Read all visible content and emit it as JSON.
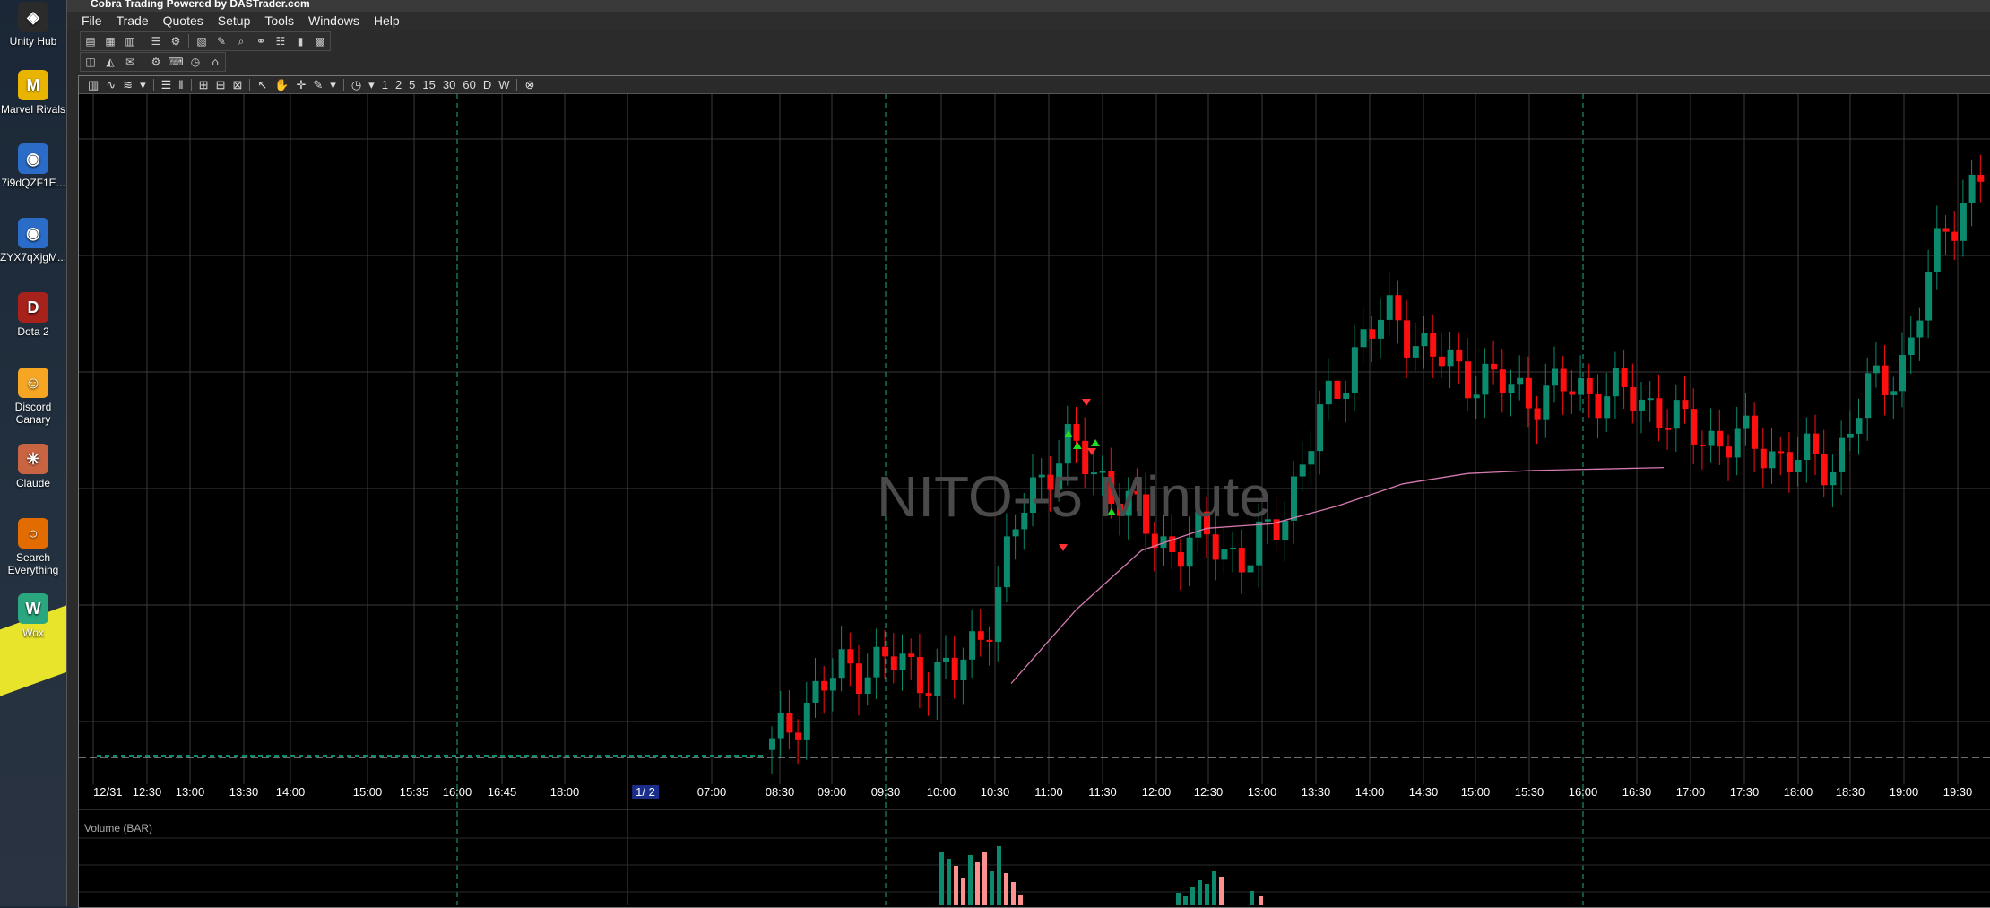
{
  "desktop": {
    "icons": [
      {
        "label": "Unity Hub",
        "icon": "unity-hub-icon",
        "color": "#2b2b2b",
        "glyph": "◈"
      },
      {
        "label": "Marvel Rivals",
        "icon": "marvel-rivals-icon",
        "color": "#e8b400",
        "glyph": "M"
      },
      {
        "label": "7i9dQZF1E...",
        "icon": "chrome-shortcut-icon",
        "color": "#2a6cc7",
        "glyph": "◉"
      },
      {
        "label": "ZYX7qXjgM...",
        "icon": "chrome-shortcut-icon",
        "color": "#2a6cc7",
        "glyph": "◉"
      },
      {
        "label": "Dota 2",
        "icon": "dota2-icon",
        "color": "#a8221c",
        "glyph": "D"
      },
      {
        "label": "Discord Canary",
        "icon": "discord-canary-icon",
        "color": "#f6a623",
        "glyph": "☺"
      },
      {
        "label": "Claude",
        "icon": "claude-icon",
        "color": "#c96442",
        "glyph": "✳"
      },
      {
        "label": "Search Everything",
        "icon": "search-everything-icon",
        "color": "#e36c00",
        "glyph": "○"
      },
      {
        "label": "Wox",
        "icon": "wox-icon",
        "color": "#2aa77f",
        "glyph": "W"
      }
    ]
  },
  "window": {
    "title": "Cobra Trading Powered by DASTrader.com"
  },
  "menu": [
    "File",
    "Trade",
    "Quotes",
    "Setup",
    "Tools",
    "Windows",
    "Help"
  ],
  "chart_toolbar": {
    "intervals": [
      "1",
      "2",
      "5",
      "15",
      "30",
      "60",
      "D",
      "W"
    ]
  },
  "chart": {
    "watermark": "NITO--5 Minute",
    "volume_label": "Volume (BAR)",
    "colors": {
      "up": "#0b8a6e",
      "down": "#ff1010",
      "vwap": "#d57ab0",
      "grid": "#3a3a3a",
      "session_line": "#1fa88a",
      "day_line": "#2b3bd0"
    }
  },
  "chart_data": {
    "type": "candlestick",
    "ticker": "NITO",
    "timeframe": "5 Minute",
    "x_tick_labels": [
      "12/31",
      "12:30",
      "13:00",
      "13:30",
      "14:00",
      "15:00",
      "15:35",
      "16:00",
      "16:45",
      "18:00",
      "1/ 2",
      "07:00",
      "08:30",
      "09:00",
      "09:30",
      "10:00",
      "10:30",
      "11:00",
      "11:30",
      "12:00",
      "12:30",
      "13:00",
      "13:30",
      "14:00",
      "14:30",
      "15:00",
      "15:30",
      "16:00",
      "16:30",
      "17:00",
      "17:30",
      "18:00",
      "18:30",
      "19:00",
      "19:30"
    ],
    "price_series": [
      0.6,
      0.6,
      0.6,
      0.6,
      0.6,
      0.62,
      0.62,
      0.6,
      0.6,
      0.6,
      0.65,
      1.0,
      1.2,
      1.25,
      1.18,
      1.15,
      1.6,
      2.4,
      2.7,
      2.5,
      2.2,
      2.0,
      2.1,
      1.9,
      2.3,
      2.9,
      3.4,
      3.6,
      3.3,
      3.2,
      3.1,
      3.05,
      3.1,
      3.05,
      3.0,
      2.8,
      2.75,
      2.7,
      2.6,
      2.6,
      3.1,
      3.3,
      4.2,
      4.5
    ],
    "vwap_series": [
      1.1,
      1.6,
      2.0,
      2.15,
      2.18,
      2.3,
      2.45,
      2.52,
      2.54,
      2.55,
      2.56
    ]
  }
}
